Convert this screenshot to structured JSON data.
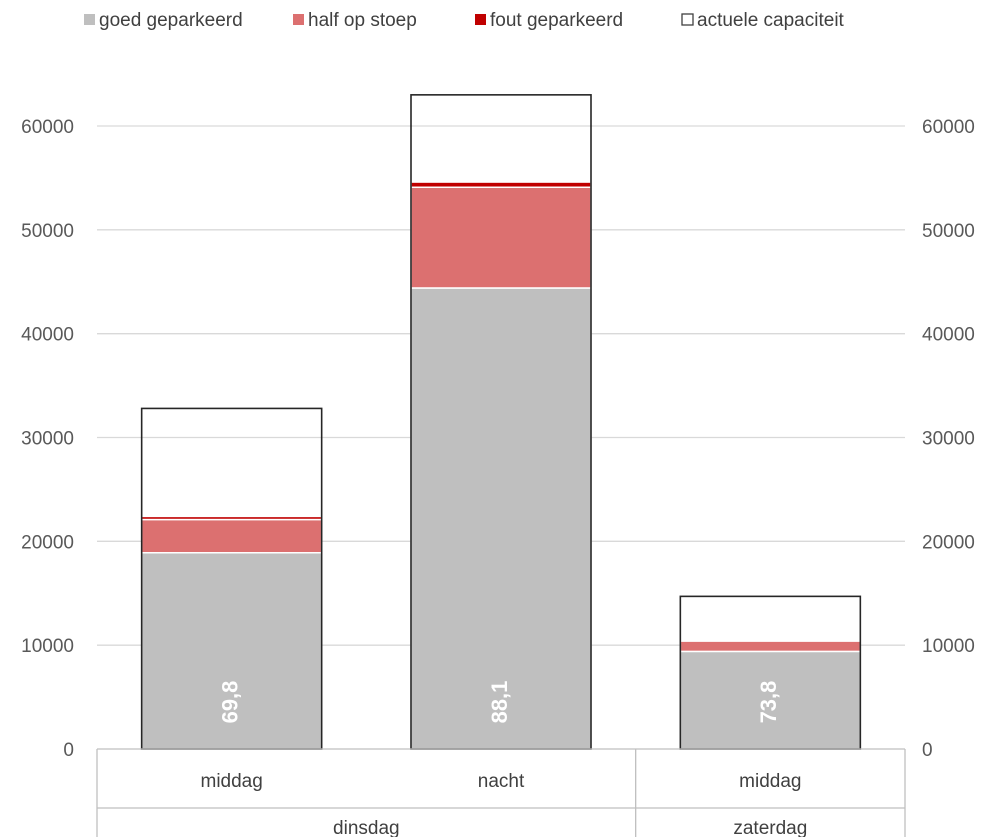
{
  "chart_data": {
    "type": "bar",
    "stacked": true,
    "title": "",
    "xlabel": "",
    "ylabel": "",
    "ylim": [
      0,
      70000
    ],
    "yticks": [
      0,
      10000,
      20000,
      30000,
      40000,
      50000,
      60000
    ],
    "secondary_yticks": [
      0,
      10000,
      20000,
      30000,
      40000,
      50000,
      60000
    ],
    "grid": true,
    "legend_position": "top",
    "categories": [
      "middag",
      "nacht",
      "middag"
    ],
    "category_groups": [
      {
        "label": "dinsdag",
        "span": 2
      },
      {
        "label": "zaterdag",
        "span": 1
      }
    ],
    "series": [
      {
        "name": "goed geparkeerd",
        "color": "#bfbfbf",
        "values": [
          18900,
          44400,
          9400
        ]
      },
      {
        "name": "half op stoep",
        "color": "#dc7070",
        "values": [
          3200,
          9700,
          1000
        ]
      },
      {
        "name": "fout geparkeerd",
        "color": "#c00000",
        "values": [
          300,
          500,
          100
        ]
      }
    ],
    "capacity": {
      "name": "actuele capaciteit",
      "values": [
        32800,
        63000,
        14700
      ]
    },
    "data_labels": [
      "69,8",
      "88,1",
      "73,8"
    ]
  }
}
